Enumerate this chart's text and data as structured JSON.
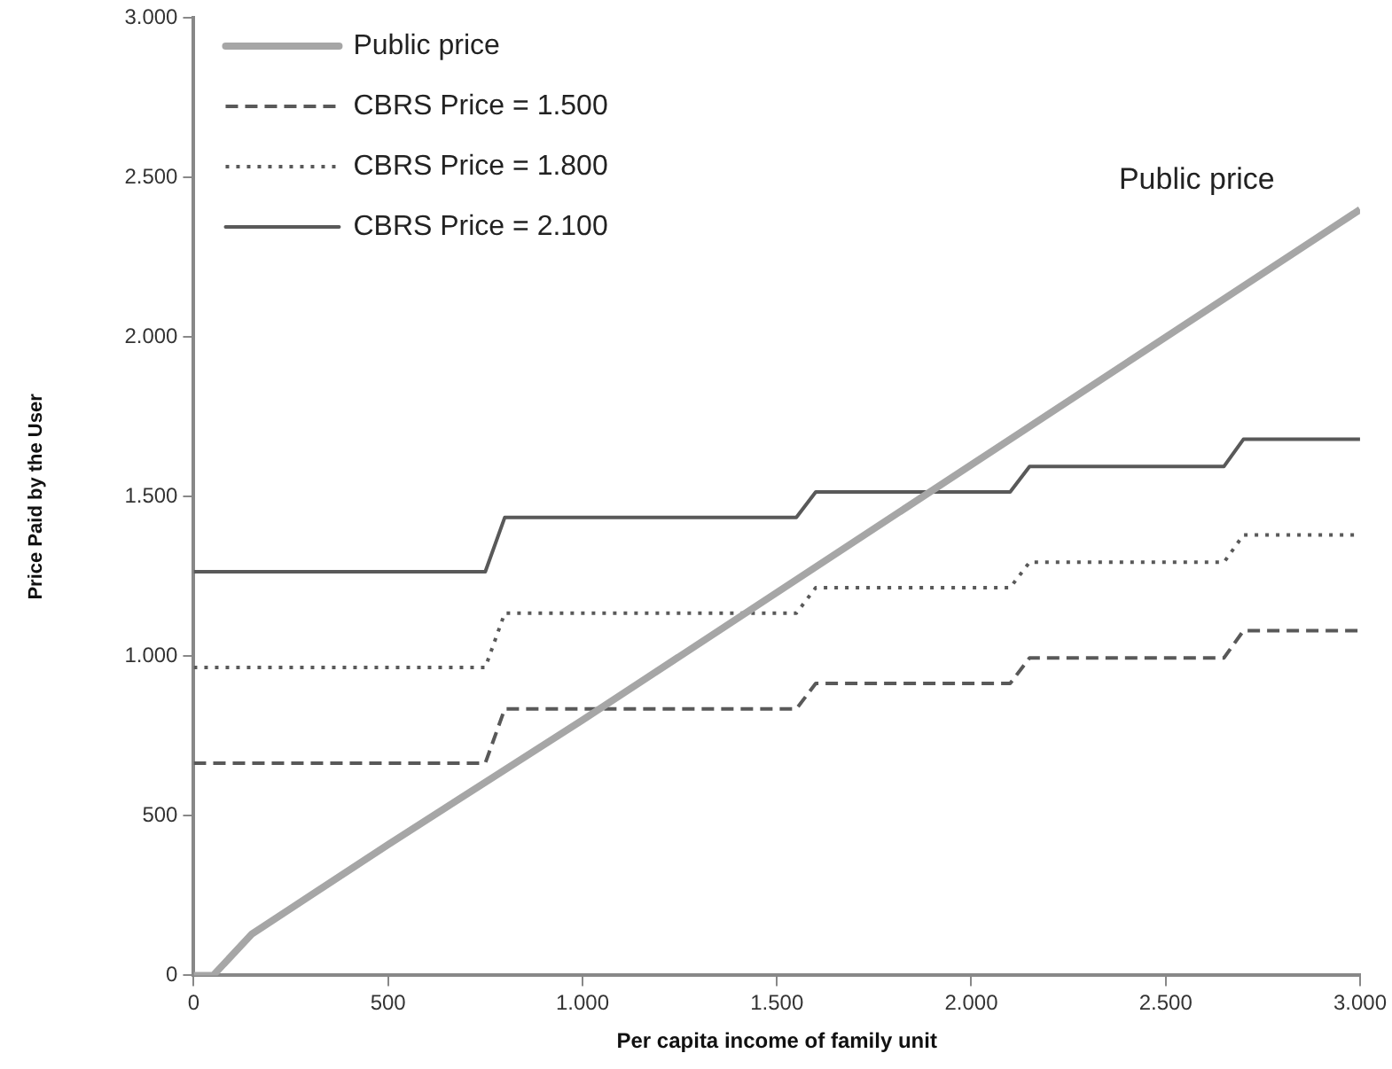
{
  "chart_data": {
    "type": "line",
    "xlabel": "Per capita income of family unit",
    "ylabel": "Price Paid by the User",
    "xlim": [
      0,
      3000
    ],
    "xticks": [
      {
        "value": 0,
        "label": "0"
      },
      {
        "value": 500,
        "label": "500"
      },
      {
        "value": 1000,
        "label": "1.000"
      },
      {
        "value": 1500,
        "label": "1.500"
      },
      {
        "value": 2000,
        "label": "2.000"
      },
      {
        "value": 2500,
        "label": "2.500"
      },
      {
        "value": 3000,
        "label": "3.000"
      }
    ],
    "ylim": [
      0,
      3000
    ],
    "yticks": [
      {
        "value": 0,
        "label": "0"
      },
      {
        "value": 500,
        "label": "500"
      },
      {
        "value": 1000,
        "label": "1.000"
      },
      {
        "value": 1500,
        "label": "1.500"
      },
      {
        "value": 2000,
        "label": "2.000"
      },
      {
        "value": 2500,
        "label": "2.500"
      },
      {
        "value": 3000,
        "label": "3.000"
      }
    ],
    "grid": false,
    "legend": "top left",
    "marker": "none",
    "series": [
      {
        "name": "Public price",
        "color": "#a6a6a6",
        "line_style": "solid",
        "x": [
          0,
          50,
          150,
          300,
          500,
          1000,
          2000,
          3000
        ],
        "values": [
          0,
          0,
          130,
          250,
          410,
          800,
          1600,
          2400
        ]
      },
      {
        "name": "CBRS Price = 1.500",
        "color": "#595959",
        "line_style": "dashed",
        "x": [
          0,
          750,
          800,
          1550,
          1600,
          2100,
          2150,
          2650,
          2700,
          3000
        ],
        "values": [
          665,
          665,
          835,
          835,
          915,
          915,
          995,
          995,
          1080,
          1080
        ]
      },
      {
        "name": "CBRS Price = 1.800",
        "color": "#595959",
        "line_style": "dotted",
        "x": [
          0,
          750,
          800,
          1550,
          1600,
          2100,
          2150,
          2650,
          2700,
          3000
        ],
        "values": [
          965,
          965,
          1135,
          1135,
          1215,
          1215,
          1295,
          1295,
          1380,
          1380
        ]
      },
      {
        "name": "CBRS Price = 2.100",
        "color": "#595959",
        "line_style": "solid",
        "x": [
          0,
          750,
          800,
          1550,
          1600,
          2100,
          2150,
          2650,
          2700,
          3000
        ],
        "values": [
          1265,
          1265,
          1435,
          1435,
          1515,
          1515,
          1595,
          1595,
          1680,
          1680
        ]
      }
    ],
    "annotations": [
      "Public price"
    ]
  }
}
